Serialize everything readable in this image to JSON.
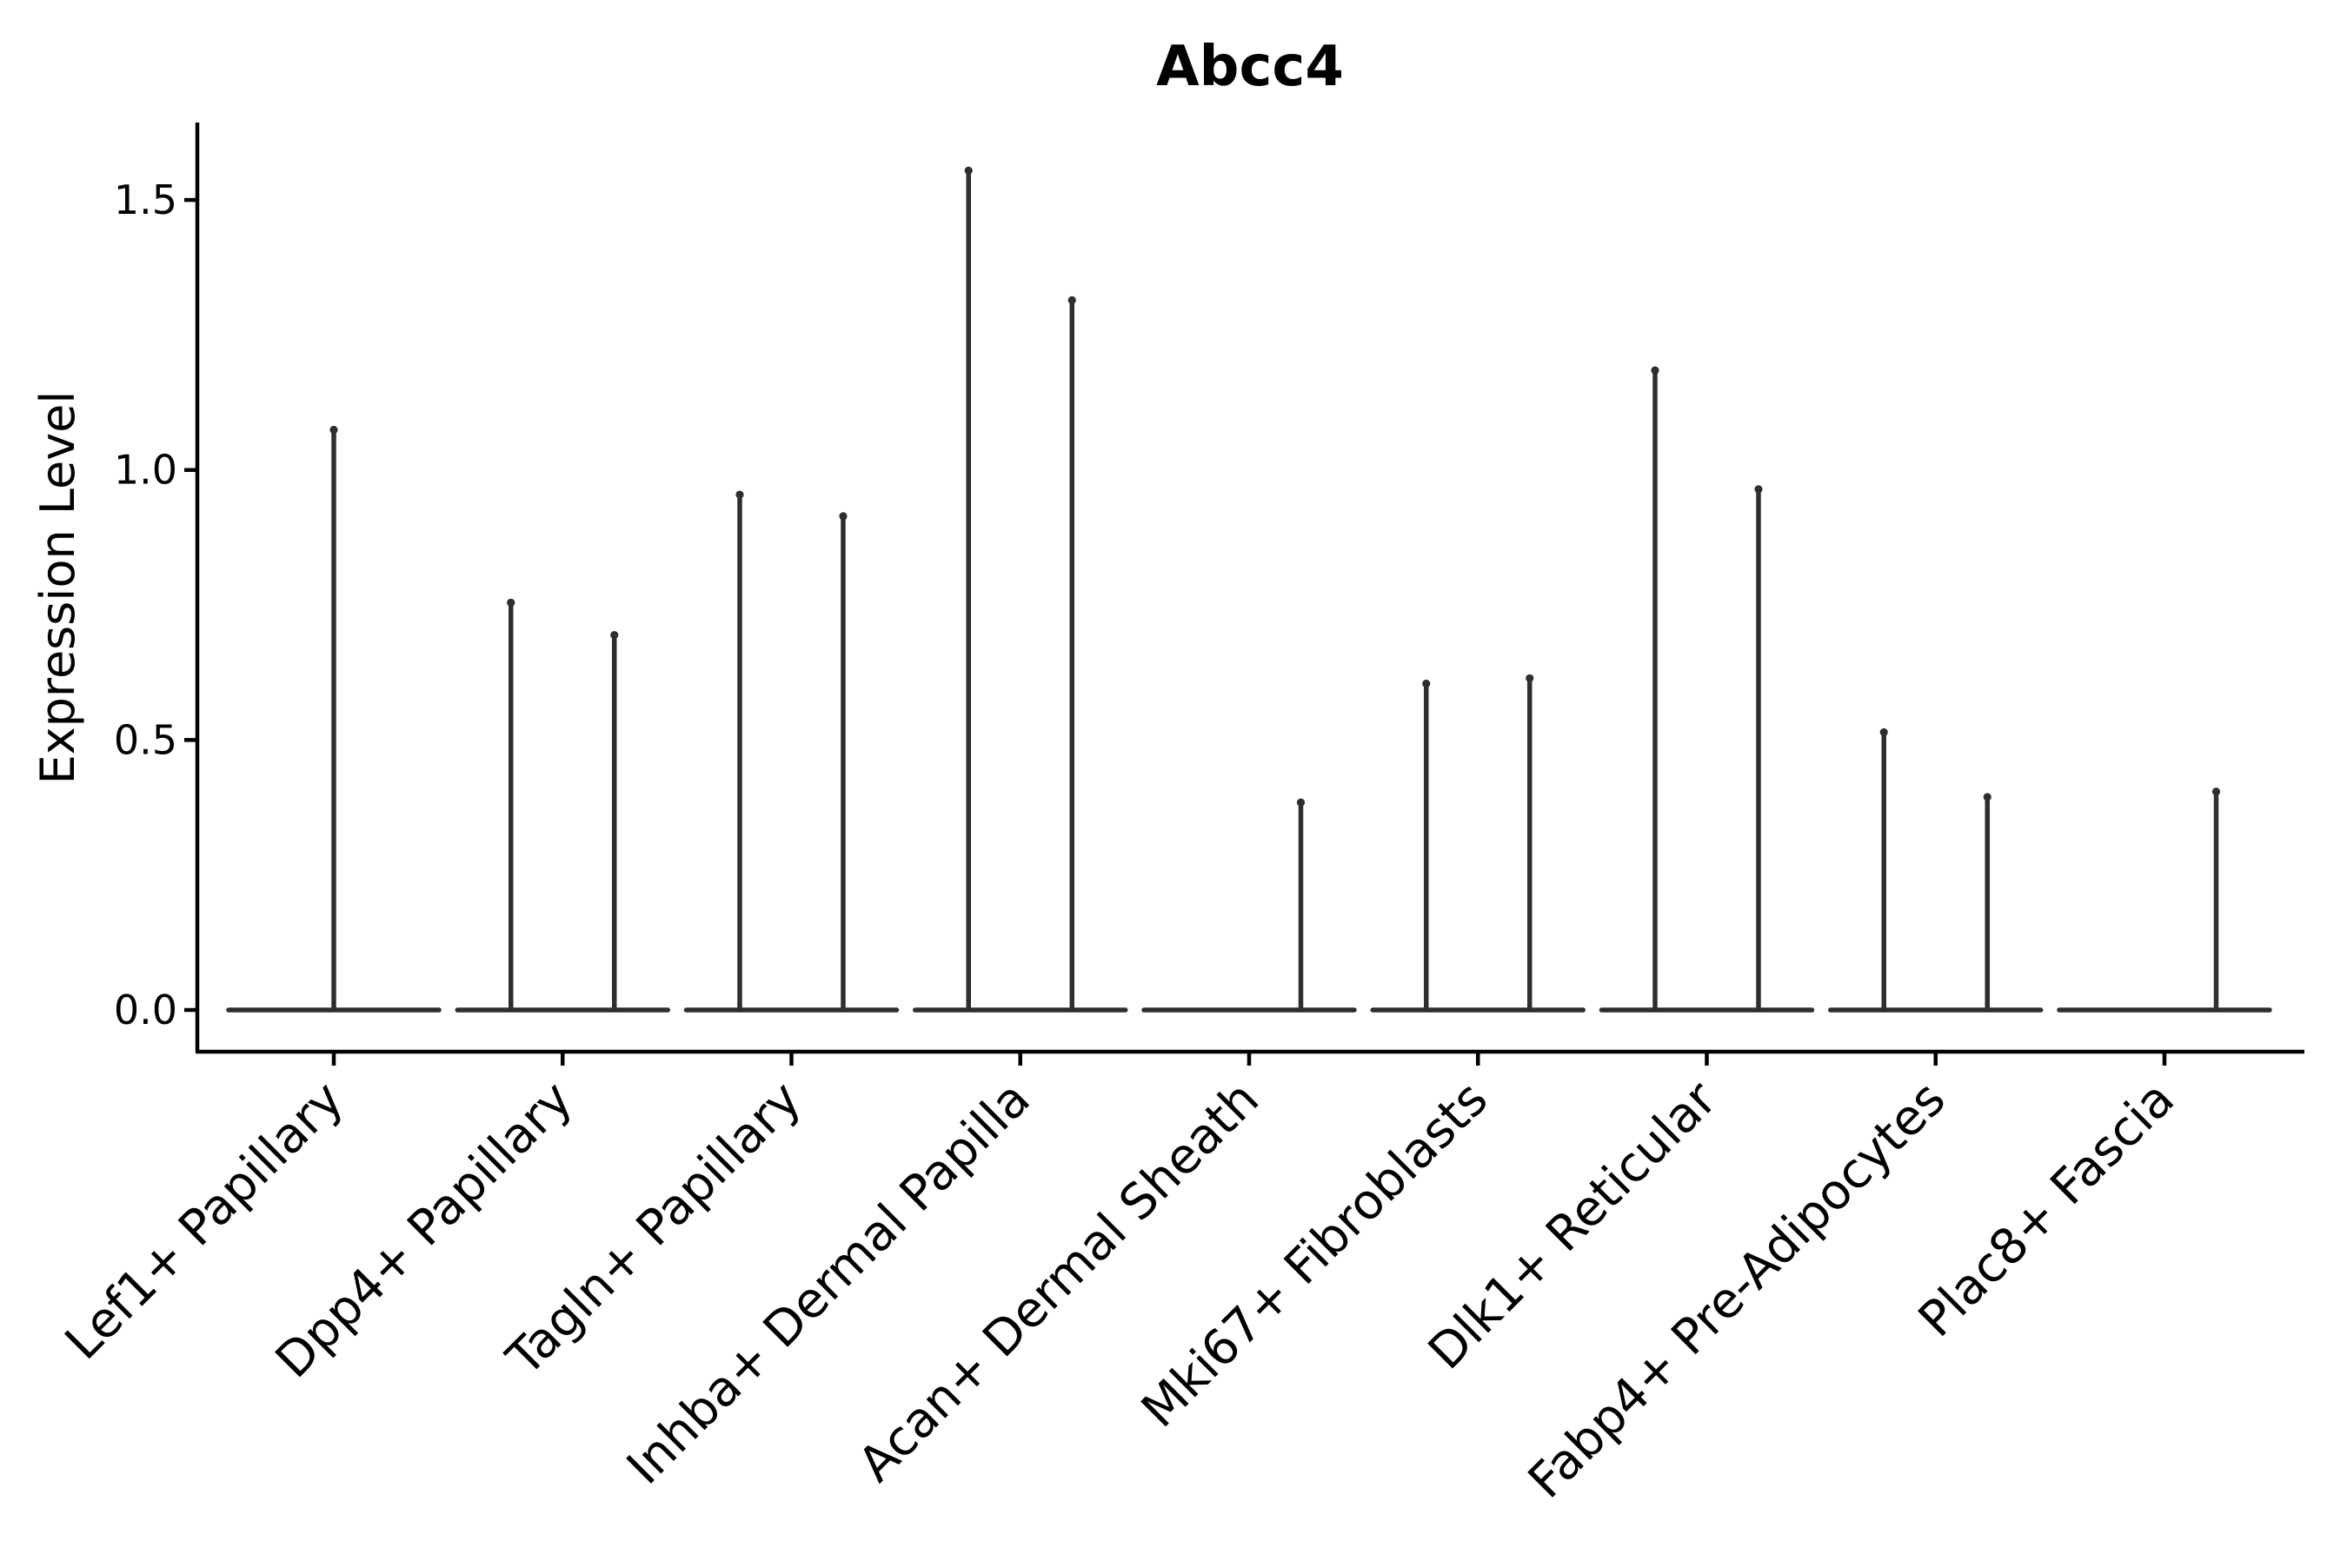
{
  "chart_data": {
    "type": "violin",
    "title": "Abcc4",
    "xlabel": "",
    "ylabel": "Expression Level",
    "y_ticks": [
      "0.0",
      "0.5",
      "1.0",
      "1.5"
    ],
    "y_tick_values": [
      0.0,
      0.5,
      1.0,
      1.5
    ],
    "ylim": [
      0.0,
      1.64
    ],
    "baseline_value": 0.0,
    "legend": "none",
    "grid": false,
    "line_color": "#2e2e2e",
    "axis_color": "#000000",
    "categories": [
      {
        "label": "Lef1+ Papillary",
        "violins": [
          {
            "position": "center",
            "max": 1.08
          }
        ]
      },
      {
        "label": "Dpp4+ Papillary",
        "violins": [
          {
            "position": "left",
            "max": 0.76
          },
          {
            "position": "right",
            "max": 0.7
          }
        ]
      },
      {
        "label": "Tagln+ Papillary",
        "violins": [
          {
            "position": "left",
            "max": 0.96
          },
          {
            "position": "right",
            "max": 0.92
          }
        ]
      },
      {
        "label": "Inhba+ Dermal Papilla",
        "violins": [
          {
            "position": "left",
            "max": 1.56
          },
          {
            "position": "right",
            "max": 1.32
          }
        ]
      },
      {
        "label": "Acan+ Dermal Sheath",
        "violins": [
          {
            "position": "right",
            "max": 0.39
          }
        ]
      },
      {
        "label": "Mki67+ Fibroblasts",
        "violins": [
          {
            "position": "left",
            "max": 0.61
          },
          {
            "position": "right",
            "max": 0.62
          }
        ]
      },
      {
        "label": "Dlk1+ Reticular",
        "violins": [
          {
            "position": "left",
            "max": 1.19
          },
          {
            "position": "right",
            "max": 0.97
          }
        ]
      },
      {
        "label": "Fabp4+ Pre-Adipocytes",
        "violins": [
          {
            "position": "left",
            "max": 0.52
          },
          {
            "position": "right",
            "max": 0.4
          }
        ]
      },
      {
        "label": "Plac8+ Fascia",
        "violins": [
          {
            "position": "right",
            "max": 0.41
          }
        ]
      }
    ]
  }
}
